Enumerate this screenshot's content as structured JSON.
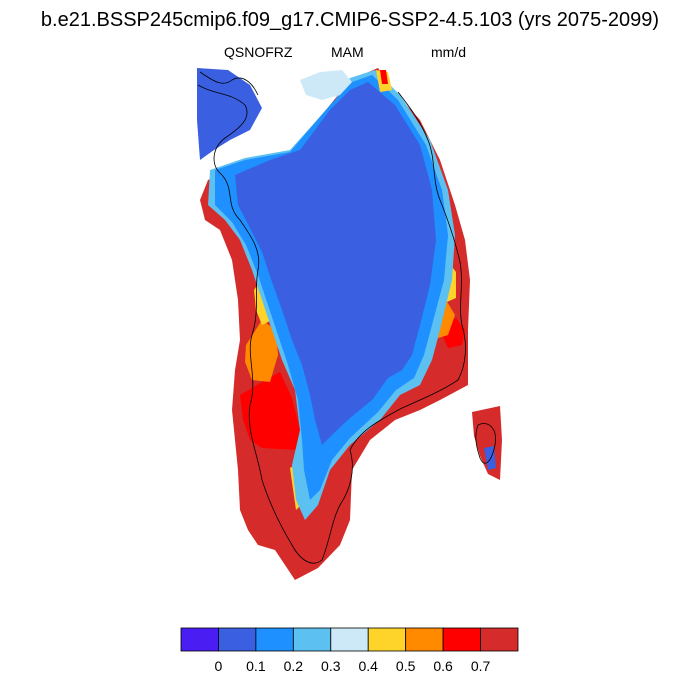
{
  "header": {
    "title": "b.e21.BSSP245cmip6.f09_g17.CMIP6-SSP2-4.5.103 (yrs 2075-2099)",
    "variable": "QSNOFRZ",
    "season": "MAM",
    "units": "mm/d"
  },
  "chart_data": {
    "type": "heatmap",
    "title": "b.e21.BSSP245cmip6.f09_g17.CMIP6-SSP2-4.5.103 (yrs 2075-2099)",
    "variable": "QSNOFRZ",
    "season": "MAM",
    "units": "mm/d",
    "region": "Greenland",
    "colorbar": {
      "levels": [
        0,
        0.1,
        0.2,
        0.3,
        0.4,
        0.5,
        0.6,
        0.7
      ],
      "labels": [
        "0",
        "0.1",
        "0.2",
        "0.3",
        "0.4",
        "0.5",
        "0.6",
        "0.7"
      ],
      "colors": [
        "#4a1ef2",
        "#3a5fe0",
        "#1e90ff",
        "#5cc1f0",
        "#cde9f7",
        "#ffd42a",
        "#ff8a00",
        "#ff0000",
        "#d62b2b"
      ]
    },
    "field_summary": {
      "interior": 0.1,
      "coastal_margin": "0.2-0.5",
      "southwest_and_south_coast": 0.7
    }
  }
}
